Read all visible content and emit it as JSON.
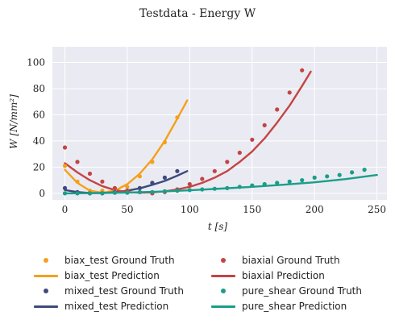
{
  "chart_data": {
    "type": "scatter",
    "title": "Testdata - Energy W",
    "xlabel": "t [s]",
    "ylabel": "W [N/mm²]",
    "xlim": [
      -10,
      258
    ],
    "ylim": [
      -5,
      112
    ],
    "xticks": [
      0,
      50,
      100,
      150,
      200,
      250
    ],
    "yticks": [
      0,
      20,
      40,
      60,
      80,
      100
    ],
    "grid": true,
    "legend_placement": "bottom",
    "series": [
      {
        "name": "biax_test Ground Truth",
        "kind": "scatter",
        "color": "#f5a01a",
        "x": [
          0,
          10,
          20,
          30,
          40,
          50,
          60,
          70,
          80,
          90
        ],
        "y": [
          21,
          9,
          2,
          2,
          2,
          5,
          13,
          24,
          39,
          58
        ]
      },
      {
        "name": "biax_test Prediction",
        "kind": "line",
        "color": "#f5a01a",
        "x": [
          0,
          10,
          20,
          30,
          40,
          50,
          60,
          70,
          80,
          90,
          98
        ],
        "y": [
          18,
          8,
          2,
          0.5,
          2,
          7,
          15,
          26,
          40,
          57,
          71
        ]
      },
      {
        "name": "mixed_test Ground Truth",
        "kind": "scatter",
        "color": "#3d4a7c",
        "x": [
          0,
          10,
          20,
          30,
          40,
          50,
          60,
          70,
          80,
          90
        ],
        "y": [
          4,
          1,
          0,
          0,
          1,
          2,
          4,
          8,
          12,
          17
        ]
      },
      {
        "name": "mixed_test Prediction",
        "kind": "line",
        "color": "#3d4a7c",
        "x": [
          0,
          10,
          20,
          30,
          40,
          50,
          60,
          70,
          80,
          90,
          98
        ],
        "y": [
          2.5,
          1,
          0.3,
          0.2,
          0.8,
          2,
          3.8,
          6.5,
          9.5,
          13.5,
          17
        ]
      },
      {
        "name": "biaxial Ground Truth",
        "kind": "scatter",
        "color": "#c44444",
        "x": [
          0,
          10,
          20,
          30,
          40,
          50,
          60,
          70,
          80,
          90,
          100,
          110,
          120,
          130,
          140,
          150,
          160,
          170,
          180,
          190
        ],
        "y": [
          35,
          24,
          15,
          9,
          4,
          2,
          1,
          0,
          1,
          3,
          7,
          11,
          17,
          24,
          31,
          41,
          52,
          64,
          77,
          94
        ]
      },
      {
        "name": "biaxial Prediction",
        "kind": "line",
        "color": "#c44444",
        "x": [
          0,
          10,
          20,
          30,
          40,
          50,
          60,
          70,
          80,
          90,
          100,
          110,
          120,
          130,
          140,
          150,
          160,
          170,
          180,
          190,
          197
        ],
        "y": [
          23,
          16,
          10,
          5.5,
          2.5,
          1,
          0.5,
          0.7,
          1.5,
          3,
          5,
          8,
          12,
          17,
          24,
          32,
          42,
          54,
          67,
          82,
          93
        ]
      },
      {
        "name": "pure_shear Ground Truth",
        "kind": "scatter",
        "color": "#1a9e88",
        "x": [
          0,
          10,
          20,
          30,
          40,
          50,
          60,
          70,
          80,
          90,
          100,
          110,
          120,
          130,
          140,
          150,
          160,
          170,
          180,
          190,
          200,
          210,
          220,
          230,
          240
        ],
        "y": [
          0,
          0,
          0,
          0,
          0.5,
          0.5,
          1,
          1,
          1.5,
          2,
          2.5,
          3,
          3.5,
          4,
          5,
          6,
          7,
          8,
          9,
          10,
          12,
          13,
          14,
          16,
          18
        ]
      },
      {
        "name": "pure_shear Prediction",
        "kind": "line",
        "color": "#1a9e88",
        "x": [
          0,
          25,
          50,
          75,
          100,
          125,
          150,
          175,
          200,
          225,
          250
        ],
        "y": [
          0,
          0.2,
          0.6,
          1.3,
          2.3,
          3.6,
          5,
          6.6,
          8.4,
          10.9,
          14
        ]
      }
    ]
  },
  "legend": {
    "items": [
      {
        "label": "biax_test Ground Truth",
        "kind": "scatter",
        "color": "#f5a01a"
      },
      {
        "label": "biaxial Ground Truth",
        "kind": "scatter",
        "color": "#c44444"
      },
      {
        "label": "biax_test Prediction",
        "kind": "line",
        "color": "#f5a01a"
      },
      {
        "label": "biaxial Prediction",
        "kind": "line",
        "color": "#c44444"
      },
      {
        "label": "mixed_test Ground Truth",
        "kind": "scatter",
        "color": "#3d4a7c"
      },
      {
        "label": "pure_shear Ground Truth",
        "kind": "scatter",
        "color": "#1a9e88"
      },
      {
        "label": "mixed_test Prediction",
        "kind": "line",
        "color": "#3d4a7c"
      },
      {
        "label": "pure_shear Prediction",
        "kind": "line",
        "color": "#1a9e88"
      }
    ]
  },
  "style": {
    "plot_background": "#eaeaf2",
    "grid_color": "#ffffff"
  }
}
